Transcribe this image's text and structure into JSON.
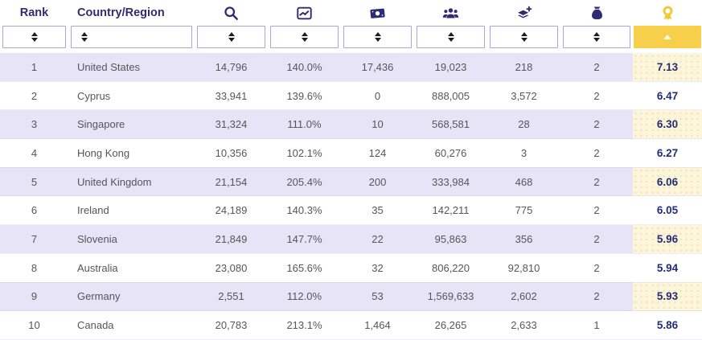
{
  "table": {
    "columns": [
      {
        "label": "Rank",
        "type": "text"
      },
      {
        "label": "Country/Region",
        "type": "text"
      },
      {
        "icon": "search-icon"
      },
      {
        "icon": "trend-chart-icon"
      },
      {
        "icon": "money-bill-icon"
      },
      {
        "icon": "users-group-icon"
      },
      {
        "icon": "layers-plus-icon"
      },
      {
        "icon": "money-bag-icon"
      },
      {
        "icon": "award-medal-icon",
        "sorted": "asc"
      }
    ],
    "rows": [
      {
        "rank": "1",
        "country": "United States",
        "values": [
          "14,796",
          "140.0%",
          "17,436",
          "19,023",
          "218",
          "2"
        ],
        "score": "7.13"
      },
      {
        "rank": "2",
        "country": "Cyprus",
        "values": [
          "33,941",
          "139.6%",
          "0",
          "888,005",
          "3,572",
          "2"
        ],
        "score": "6.47"
      },
      {
        "rank": "3",
        "country": "Singapore",
        "values": [
          "31,324",
          "111.0%",
          "10",
          "568,581",
          "28",
          "2"
        ],
        "score": "6.30"
      },
      {
        "rank": "4",
        "country": "Hong Kong",
        "values": [
          "10,356",
          "102.1%",
          "124",
          "60,276",
          "3",
          "2"
        ],
        "score": "6.27"
      },
      {
        "rank": "5",
        "country": "United Kingdom",
        "values": [
          "21,154",
          "205.4%",
          "200",
          "333,984",
          "468",
          "2"
        ],
        "score": "6.06"
      },
      {
        "rank": "6",
        "country": "Ireland",
        "values": [
          "24,189",
          "140.3%",
          "35",
          "142,211",
          "775",
          "2"
        ],
        "score": "6.05"
      },
      {
        "rank": "7",
        "country": "Slovenia",
        "values": [
          "21,849",
          "147.7%",
          "22",
          "95,863",
          "356",
          "2"
        ],
        "score": "5.96"
      },
      {
        "rank": "8",
        "country": "Australia",
        "values": [
          "23,080",
          "165.6%",
          "32",
          "806,220",
          "92,810",
          "2"
        ],
        "score": "5.94"
      },
      {
        "rank": "9",
        "country": "Germany",
        "values": [
          "2,551",
          "112.0%",
          "53",
          "1,569,633",
          "2,602",
          "2"
        ],
        "score": "5.93"
      },
      {
        "rank": "10",
        "country": "Canada",
        "values": [
          "20,783",
          "213.1%",
          "1,464",
          "26,265",
          "2,633",
          "1"
        ],
        "score": "5.86"
      }
    ]
  },
  "filter_row": {
    "sort_control": "up-down-arrows",
    "score_sort_indicator": "up-triangle"
  },
  "colors": {
    "header_indigo": "#2e2c72",
    "row_lavender": "#e8e4f7",
    "accent_yellow": "#f7cf4b",
    "score_bg_pale_yellow": "#fdf5da",
    "score_text_navy": "#222d76",
    "body_text_gray": "#54565b",
    "filter_border_purple": "#aaa4d8"
  }
}
